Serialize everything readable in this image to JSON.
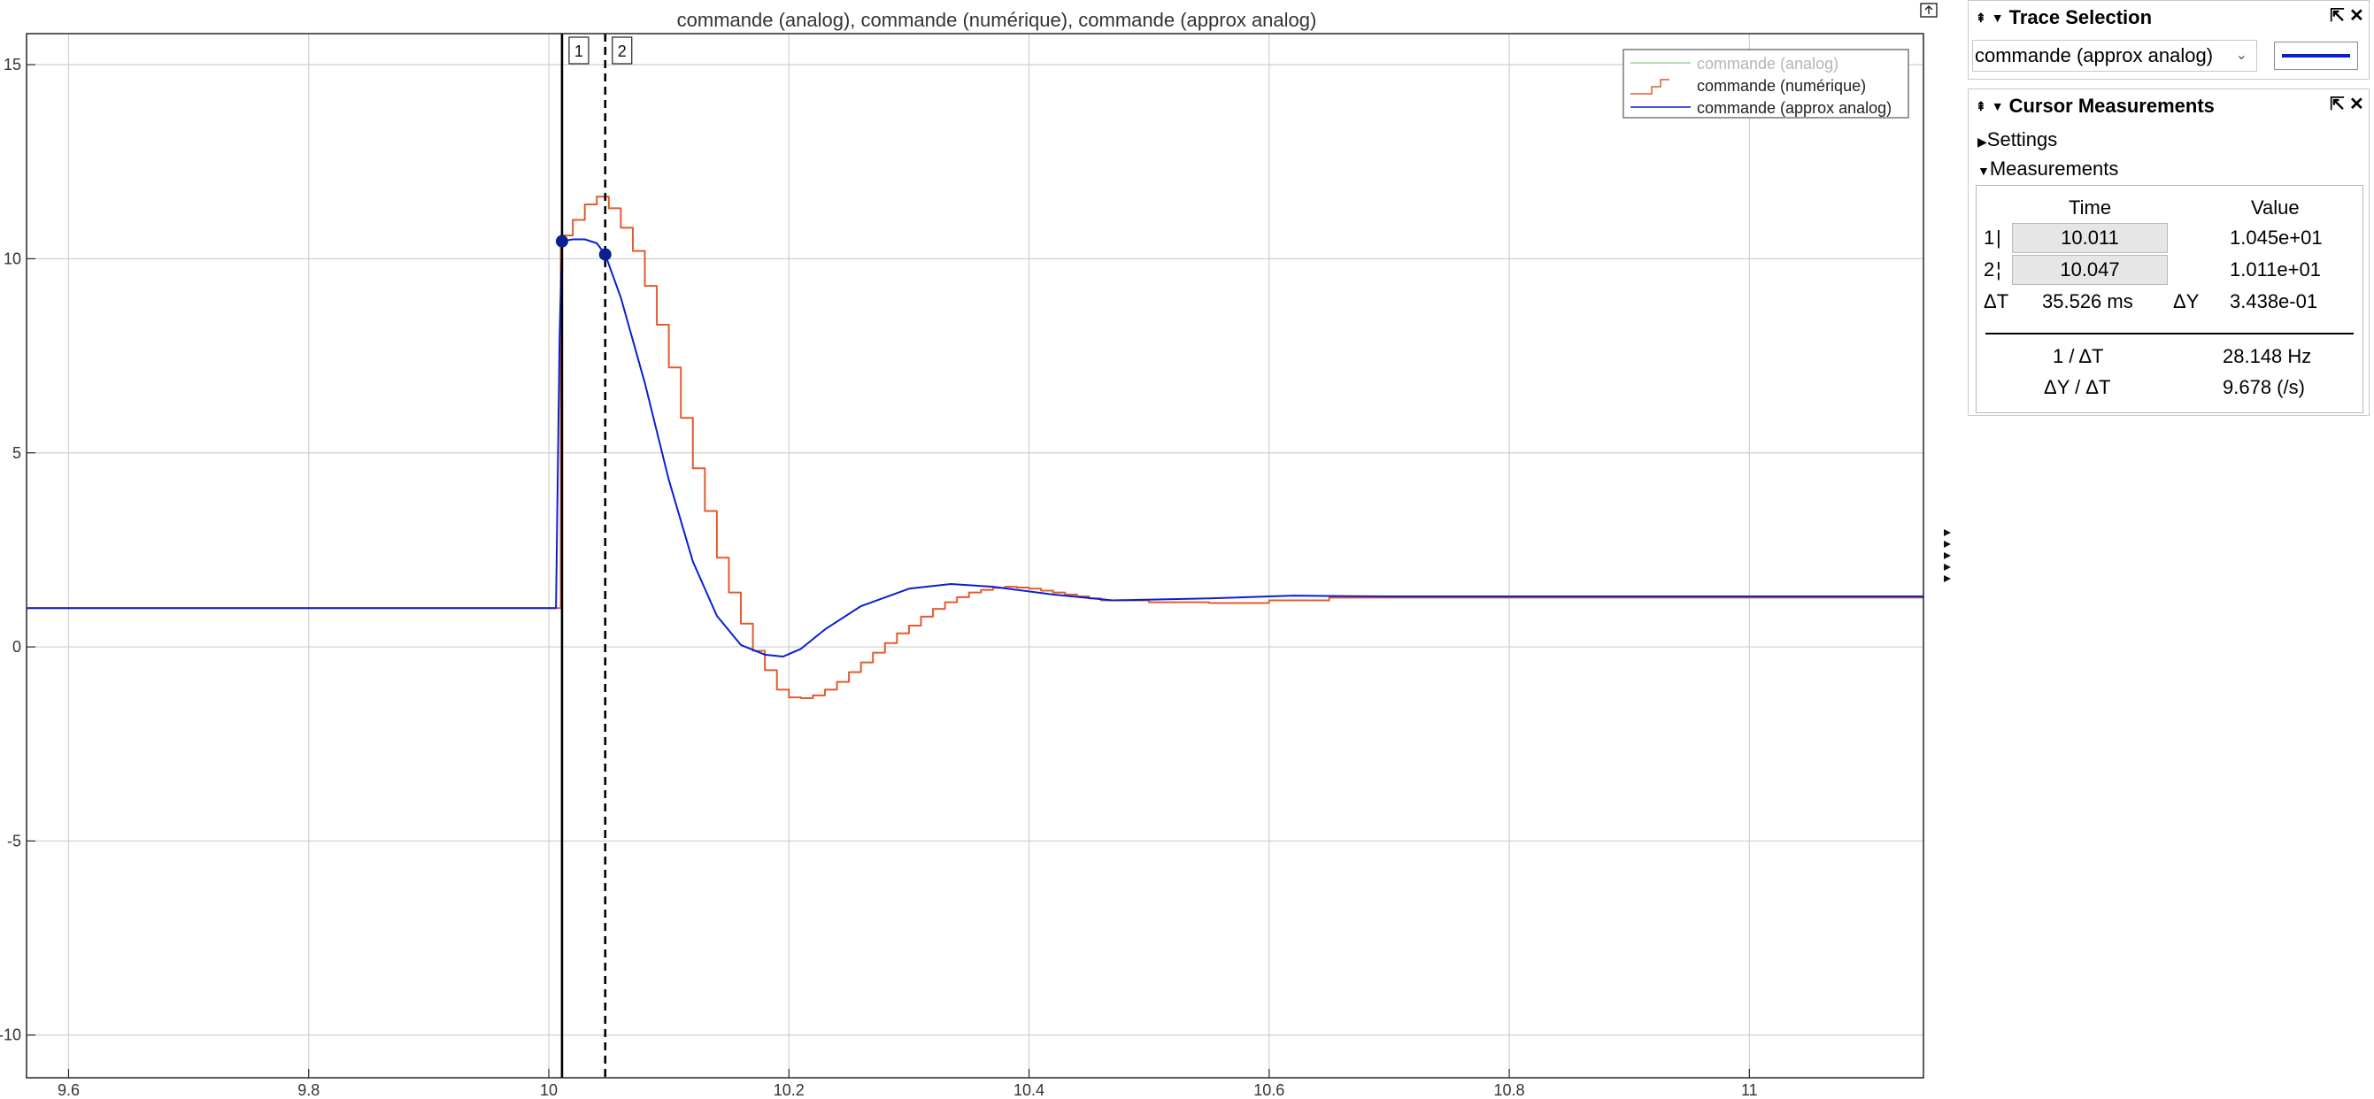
{
  "plot": {
    "title": "commande (analog), commande (numérique), commande (approx analog)",
    "legend": [
      {
        "label": "commande (analog)",
        "color": "#9ccf9c",
        "dim": true
      },
      {
        "label": "commande (numérique)",
        "color": "#e35b2c",
        "dim": false
      },
      {
        "label": "commande (approx analog)",
        "color": "#0a1fd1",
        "dim": false
      }
    ],
    "cursor_tags": [
      "1",
      "2"
    ],
    "undock_icon": "undock-icon",
    "collapse_arrows_icon": "triangle-right-icon"
  },
  "chart_data": {
    "type": "line",
    "title": "commande (analog), commande (numérique), commande (approx analog)",
    "xlim": [
      9.565,
      11.145
    ],
    "ylim": [
      -11.1,
      15.8
    ],
    "x_ticks": [
      "9.6",
      "9.8",
      "10",
      "10.2",
      "10.4",
      "10.6",
      "10.8",
      "11"
    ],
    "x_tick_values": [
      9.6,
      9.8,
      10.0,
      10.2,
      10.4,
      10.6,
      10.8,
      11.0
    ],
    "y_ticks": [
      "15",
      "10",
      "5",
      "0",
      "-5",
      "-10"
    ],
    "y_tick_values": [
      15,
      10,
      5,
      0,
      -5,
      -10
    ],
    "grid": true,
    "legend_position": "top-right",
    "series": [
      {
        "name": "commande (approx analog)",
        "color": "#0a1fd1",
        "style": "line",
        "x": [
          9.565,
          10.006,
          10.009,
          10.011,
          10.02,
          10.03,
          10.04,
          10.047,
          10.06,
          10.08,
          10.1,
          10.12,
          10.14,
          10.16,
          10.18,
          10.195,
          10.21,
          10.23,
          10.26,
          10.3,
          10.335,
          10.37,
          10.42,
          10.47,
          10.55,
          10.62,
          10.7,
          10.8,
          11.145
        ],
        "y": [
          1.0,
          1.0,
          8.0,
          10.45,
          10.5,
          10.5,
          10.4,
          10.11,
          9.0,
          6.8,
          4.3,
          2.2,
          0.8,
          0.05,
          -0.2,
          -0.25,
          -0.05,
          0.45,
          1.05,
          1.5,
          1.62,
          1.55,
          1.35,
          1.2,
          1.25,
          1.32,
          1.3,
          1.3,
          1.3
        ]
      },
      {
        "name": "commande (numérique)",
        "color": "#e35b2c",
        "style": "step",
        "x": [
          9.565,
          10.006,
          10.01,
          10.02,
          10.03,
          10.04,
          10.05,
          10.06,
          10.07,
          10.08,
          10.09,
          10.1,
          10.11,
          10.12,
          10.13,
          10.14,
          10.15,
          10.16,
          10.17,
          10.18,
          10.19,
          10.2,
          10.21,
          10.22,
          10.23,
          10.24,
          10.25,
          10.26,
          10.27,
          10.28,
          10.29,
          10.3,
          10.31,
          10.32,
          10.33,
          10.34,
          10.35,
          10.36,
          10.37,
          10.38,
          10.39,
          10.4,
          10.41,
          10.42,
          10.43,
          10.44,
          10.45,
          10.46,
          10.5,
          10.55,
          10.6,
          10.65,
          11.145
        ],
        "y": [
          1.0,
          1.0,
          10.6,
          11.0,
          11.4,
          11.6,
          11.3,
          10.8,
          10.2,
          9.3,
          8.3,
          7.2,
          5.9,
          4.6,
          3.5,
          2.3,
          1.4,
          0.6,
          -0.1,
          -0.6,
          -1.1,
          -1.3,
          -1.32,
          -1.25,
          -1.1,
          -0.9,
          -0.65,
          -0.4,
          -0.15,
          0.1,
          0.35,
          0.55,
          0.78,
          0.98,
          1.15,
          1.28,
          1.4,
          1.47,
          1.52,
          1.55,
          1.53,
          1.5,
          1.45,
          1.4,
          1.35,
          1.3,
          1.25,
          1.2,
          1.15,
          1.13,
          1.2,
          1.27,
          1.3
        ]
      }
    ],
    "cursors": [
      {
        "id": "1",
        "x": 10.011,
        "y": 10.45,
        "style": "solid"
      },
      {
        "id": "2",
        "x": 10.047,
        "y": 10.11,
        "style": "dashed"
      }
    ]
  },
  "trace_selection": {
    "title": "Trace Selection",
    "selected_trace": "commande (approx analog)",
    "swatch_color": "#0a1fd1",
    "pin_icon": "pin-icon",
    "collapse_icon": "chevron-down-icon",
    "undock_icon": "undock-icon",
    "close_icon": "close-icon"
  },
  "cursor_measurements": {
    "title": "Cursor Measurements",
    "settings_label": "Settings",
    "measurements_label": "Measurements",
    "col_time": "Time",
    "col_value": "Value",
    "rows": [
      {
        "id": "1",
        "marker": "|",
        "time": "10.011",
        "value": "1.045e+01"
      },
      {
        "id": "2",
        "marker": "¦",
        "time": "10.047",
        "value": "1.011e+01"
      }
    ],
    "delta_t_label": "ΔT",
    "delta_t_value": "35.526 ms",
    "delta_y_label": "ΔY",
    "delta_y_value": "3.438e-01",
    "inv_dt_label": "1 / ΔT",
    "inv_dt_value": "28.148 Hz",
    "dy_dt_label": "ΔY / ΔT",
    "dy_dt_value": "9.678 (/s)"
  }
}
